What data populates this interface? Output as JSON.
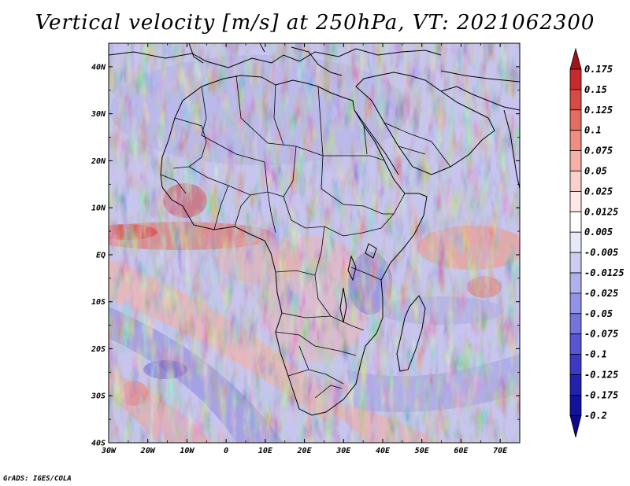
{
  "title": "Vertical velocity [m/s] at 250hPa, VT: 2021062300",
  "footer": "GrADS: IGES/COLA",
  "map": {
    "lon_range": [
      -30,
      75
    ],
    "lat_range": [
      -40,
      45
    ],
    "lon_ticks": [
      "30W",
      "20W",
      "10W",
      "0",
      "10E",
      "20E",
      "30E",
      "40E",
      "50E",
      "60E",
      "70E"
    ],
    "lat_ticks": [
      "40N",
      "30N",
      "20N",
      "10N",
      "EQ",
      "10S",
      "20S",
      "30S",
      "40S"
    ]
  },
  "colorbar": {
    "labels": [
      "0.175",
      "0.15",
      "0.125",
      "0.1",
      "0.075",
      "0.05",
      "0.025",
      "0.0125",
      "0.005",
      "-0.005",
      "-0.0125",
      "-0.025",
      "-0.05",
      "-0.075",
      "-0.1",
      "-0.125",
      "-0.175",
      "-0.2"
    ],
    "colors": [
      "#a3131b",
      "#c82a2b",
      "#d94a43",
      "#e56c62",
      "#ef8d83",
      "#f6b0a8",
      "#fbd0ca",
      "#fde8e4",
      "#ffffff",
      "#e8e8fb",
      "#cdcdf4",
      "#b0b0ee",
      "#9292e6",
      "#7474dd",
      "#5656d2",
      "#3a3ac4",
      "#2222b0",
      "#1212a0",
      "#0a0a8a"
    ]
  }
}
